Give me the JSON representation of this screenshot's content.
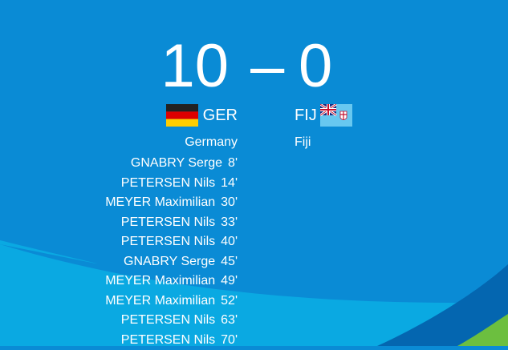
{
  "match": {
    "home": {
      "score": "10",
      "code": "GER",
      "name": "Germany",
      "flag": "germany-flag-icon"
    },
    "away": {
      "score": "0",
      "code": "FIJ",
      "name": "Fiji",
      "flag": "fiji-flag-icon"
    },
    "separator": "–"
  },
  "home_scorers": [
    {
      "player": "GNABRY Serge",
      "minute": "8'"
    },
    {
      "player": "PETERSEN Nils",
      "minute": "14'"
    },
    {
      "player": "MEYER Maximilian",
      "minute": "30'"
    },
    {
      "player": "PETERSEN Nils",
      "minute": "33'"
    },
    {
      "player": "PETERSEN Nils",
      "minute": "40'"
    },
    {
      "player": "GNABRY Serge",
      "minute": "45'"
    },
    {
      "player": "MEYER Maximilian",
      "minute": "49'"
    },
    {
      "player": "MEYER Maximilian",
      "minute": "52'"
    },
    {
      "player": "PETERSEN Nils",
      "minute": "63'"
    },
    {
      "player": "PETERSEN Nils",
      "minute": "70'"
    }
  ],
  "colors": {
    "background": "#0a8bd5",
    "light_band": "#0aa9e2",
    "dark_band": "#0466b0",
    "green_corner": "#6cbf3f"
  }
}
